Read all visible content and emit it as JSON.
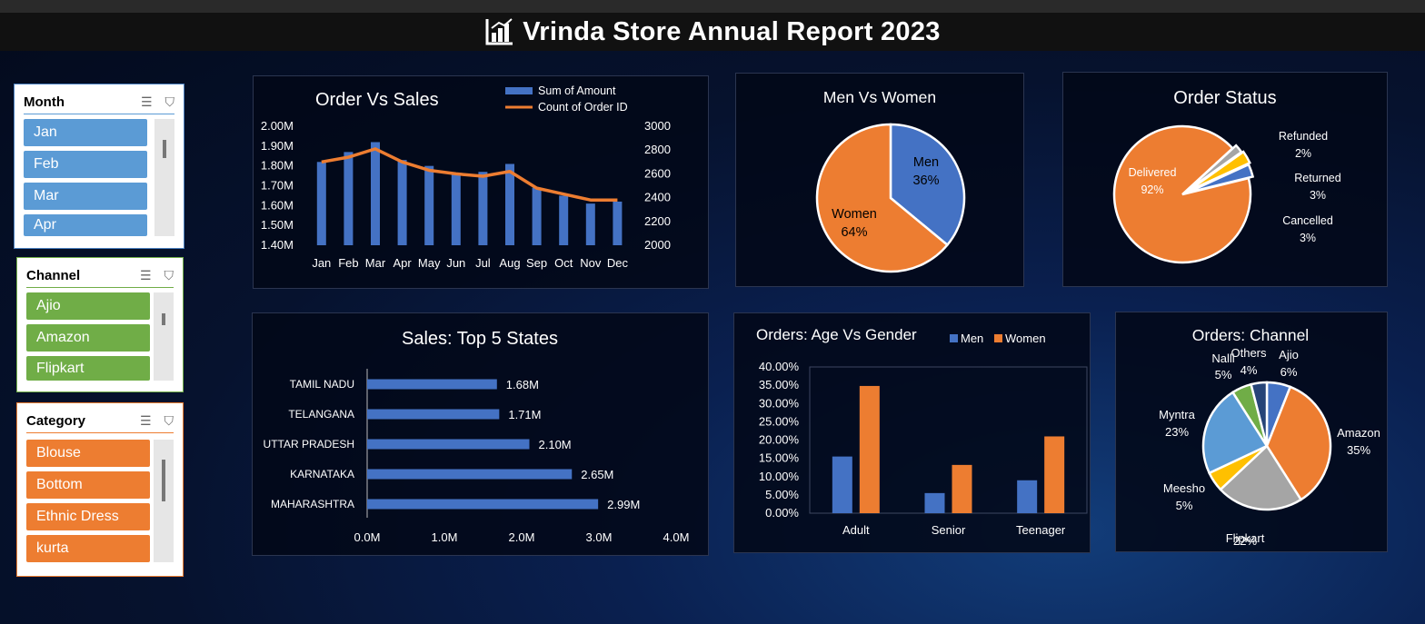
{
  "title": "Vrinda Store Annual Report 2023",
  "slicers": {
    "month": {
      "label": "Month",
      "items": [
        "Jan",
        "Feb",
        "Mar",
        "Apr"
      ],
      "color": "#5b9bd5",
      "border": "#4a7fbf"
    },
    "channel": {
      "label": "Channel",
      "items": [
        "Ajio",
        "Amazon",
        "Flipkart"
      ],
      "color": "#70ad47",
      "border": "#70ad47"
    },
    "category": {
      "label": "Category",
      "items": [
        "Blouse",
        "Bottom",
        "Ethnic Dress",
        "kurta"
      ],
      "color": "#ed7d31",
      "border": "#ed7d31"
    }
  },
  "chart_data": [
    {
      "id": "order_vs_sales",
      "type": "bar+line",
      "title": "Order Vs Sales",
      "categories": [
        "Jan",
        "Feb",
        "Mar",
        "Apr",
        "May",
        "Jun",
        "Jul",
        "Aug",
        "Sep",
        "Oct",
        "Nov",
        "Dec"
      ],
      "series": [
        {
          "name": "Sum of Amount",
          "type": "bar",
          "axis": "left",
          "color": "#4472c4",
          "values": [
            1.82,
            1.87,
            1.92,
            1.83,
            1.8,
            1.76,
            1.77,
            1.81,
            1.69,
            1.65,
            1.61,
            1.62
          ]
        },
        {
          "name": "Count of Order ID",
          "type": "line",
          "axis": "right",
          "color": "#ed7d31",
          "values": [
            2700,
            2740,
            2810,
            2700,
            2630,
            2600,
            2580,
            2620,
            2480,
            2430,
            2380,
            2380
          ]
        }
      ],
      "yleft": {
        "ticks": [
          "2.00M",
          "1.90M",
          "1.80M",
          "1.70M",
          "1.60M",
          "1.50M",
          "1.40M"
        ],
        "lim": [
          1.4,
          2.0
        ]
      },
      "yright": {
        "ticks": [
          "3000",
          "2800",
          "2600",
          "2400",
          "2200",
          "2000"
        ],
        "lim": [
          2000,
          3000
        ]
      },
      "legend": "top-right"
    },
    {
      "id": "men_vs_women",
      "type": "pie",
      "title": "Men Vs Women",
      "slices": [
        {
          "label": "Men",
          "value": 36,
          "text": "36%",
          "color": "#4472c4"
        },
        {
          "label": "Women",
          "value": 64,
          "text": "64%",
          "color": "#ed7d31"
        }
      ]
    },
    {
      "id": "order_status",
      "type": "pie",
      "title": "Order Status",
      "slices": [
        {
          "label": "Delivered",
          "value": 92,
          "text": "92%",
          "color": "#ed7d31"
        },
        {
          "label": "Refunded",
          "value": 2,
          "text": "2%",
          "color": "#a5a5a5"
        },
        {
          "label": "Returned",
          "value": 3,
          "text": "3%",
          "color": "#ffc000"
        },
        {
          "label": "Cancelled",
          "value": 3,
          "text": "3%",
          "color": "#4472c4"
        }
      ]
    },
    {
      "id": "top5_states",
      "type": "bar",
      "orientation": "horizontal",
      "title": "Sales: Top 5 States",
      "categories": [
        "TAMIL NADU",
        "TELANGANA",
        "UTTAR PRADESH",
        "KARNATAKA",
        "MAHARASHTRA"
      ],
      "values": [
        1.68,
        1.71,
        2.1,
        2.65,
        2.99
      ],
      "labels": [
        "1.68M",
        "1.71M",
        "2.10M",
        "2.65M",
        "2.99M"
      ],
      "xticks": [
        "0.0M",
        "1.0M",
        "2.0M",
        "3.0M",
        "4.0M"
      ],
      "xlim": [
        0,
        4
      ],
      "color": "#4472c4"
    },
    {
      "id": "age_vs_gender",
      "type": "bar",
      "title": "Orders: Age Vs Gender",
      "categories": [
        "Adult",
        "Senior",
        "Teenager"
      ],
      "series": [
        {
          "name": "Men",
          "color": "#4472c4",
          "values": [
            15.5,
            5.5,
            9.0
          ]
        },
        {
          "name": "Women",
          "color": "#ed7d31",
          "values": [
            34.8,
            13.2,
            21.0
          ]
        }
      ],
      "yticks": [
        "40.00%",
        "35.00%",
        "30.00%",
        "25.00%",
        "20.00%",
        "15.00%",
        "10.00%",
        "5.00%",
        "0.00%"
      ],
      "ylim": [
        0,
        40
      ],
      "legend": "top-right"
    },
    {
      "id": "orders_channel",
      "type": "pie",
      "title": "Orders: Channel",
      "slices": [
        {
          "label": "Ajio",
          "value": 6,
          "text": "6%",
          "color": "#4472c4"
        },
        {
          "label": "Amazon",
          "value": 35,
          "text": "35%",
          "color": "#ed7d31"
        },
        {
          "label": "Flipkart",
          "value": 22,
          "text": "22%",
          "color": "#a5a5a5"
        },
        {
          "label": "Meesho",
          "value": 5,
          "text": "5%",
          "color": "#ffc000"
        },
        {
          "label": "Myntra",
          "value": 23,
          "text": "23%",
          "color": "#5b9bd5"
        },
        {
          "label": "Nalli",
          "value": 5,
          "text": "5%",
          "color": "#70ad47"
        },
        {
          "label": "Others",
          "value": 4,
          "text": "4%",
          "color": "#264478"
        }
      ]
    }
  ]
}
